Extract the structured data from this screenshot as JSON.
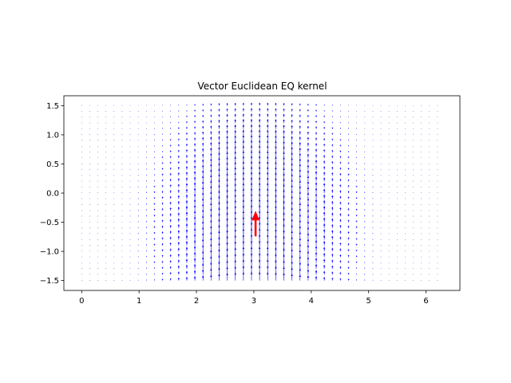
{
  "chart_data": {
    "type": "quiver",
    "title": "Vector Euclidean EQ kernel",
    "xlabel": "",
    "ylabel": "",
    "xlim": [
      -0.31,
      6.59
    ],
    "ylim": [
      -1.67,
      1.67
    ],
    "x_ticks": [
      0,
      1,
      2,
      3,
      4,
      5,
      6
    ],
    "y_ticks": [
      -1.5,
      -1.0,
      -0.5,
      0.0,
      0.5,
      1.0,
      1.5
    ],
    "x_tick_labels": [
      "0",
      "1",
      "2",
      "3",
      "4",
      "5",
      "6"
    ],
    "y_tick_labels": [
      "−1.5",
      "−1.0",
      "−0.5",
      "0.0",
      "0.5",
      "1.0",
      "1.5"
    ],
    "grid": false,
    "legend": "none",
    "field": {
      "x_range": [
        0,
        6.2
      ],
      "y_range": [
        -1.5,
        1.5
      ],
      "nx": 45,
      "ny": 31,
      "direction": "up",
      "color": "#0000ff",
      "center": [
        3.03,
        -0.55
      ],
      "length_scale": 1.0
    },
    "source_arrow": {
      "x": 3.03,
      "y": -0.55,
      "u": 0,
      "v": 1,
      "color": "#ff0000"
    }
  }
}
